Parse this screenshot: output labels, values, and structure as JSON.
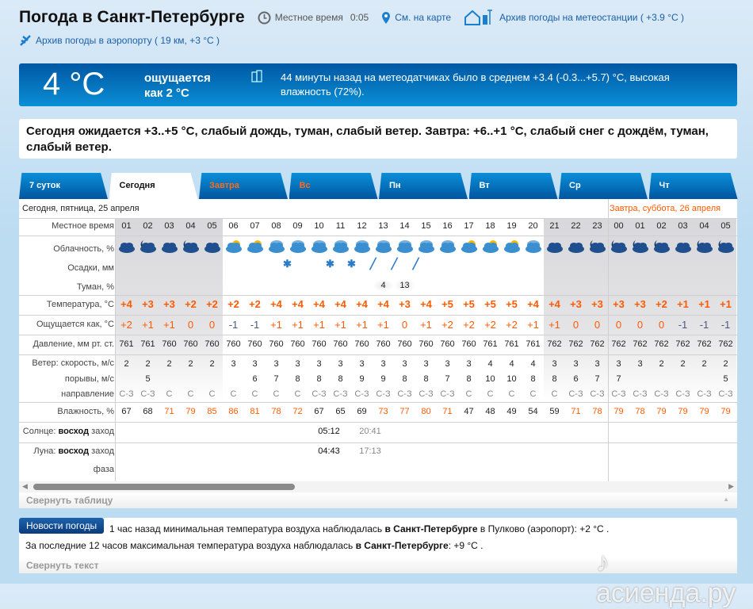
{
  "header": {
    "title": "Погода в Санкт-Петербурге",
    "local_time_label": "Местное время",
    "local_time": "0:05",
    "map_link": "См. на карте",
    "station_archive": "Архив погоды на метеостанции ( +3.9 °C )",
    "airport_archive": "Архив погоды в аэропорту ( 19 км, +3 °C )"
  },
  "current": {
    "temp": "4 °C",
    "feels_line1": "ощущается",
    "feels_line2": "как 2 °C",
    "observation": "44 минуты назад на метеодатчиках было в среднем +3.4 (-0.3...+5.7) °C, высокая влажность (72%)."
  },
  "forecast_text": "Сегодня ожидается +3..+5 °C, слабый дождь, туман, слабый ветер. Завтра: +6..+1 °C, слабый снег с дождём, туман, слабый ветер.",
  "tabs": [
    {
      "label": "7 суток"
    },
    {
      "label": "Сегодня",
      "active": true
    },
    {
      "label": "Завтра",
      "weekend": true
    },
    {
      "label": "Вс",
      "weekend": true
    },
    {
      "label": "Пн"
    },
    {
      "label": "Вт"
    },
    {
      "label": "Ср"
    },
    {
      "label": "Чт"
    }
  ],
  "help": "?",
  "date_today": "Сегодня, пятница, 25 апреля",
  "date_tomorrow": "Завтра, суббота, 26 апреля",
  "labels": {
    "time": "Местное время",
    "cloud": "Облачность, %",
    "precip": "Осадки, мм",
    "fog": "Туман, %",
    "temp": "Температура, °C",
    "feels": "Ощущается как, °C",
    "pressure": "Давление, мм рт. ст.",
    "wind": "Ветер: скорость, м/с",
    "gust": "порывы, м/с",
    "dir": "направление",
    "humidity": "Влажность, %",
    "sun": "Солнце:",
    "moon": "Луна:",
    "rise": "восход",
    "set": "заход",
    "phase": "фаза"
  },
  "hours": [
    "01",
    "02",
    "03",
    "04",
    "05",
    "06",
    "07",
    "08",
    "09",
    "10",
    "11",
    "12",
    "13",
    "14",
    "15",
    "16",
    "17",
    "18",
    "19",
    "20",
    "21",
    "22",
    "23",
    "00",
    "01",
    "02",
    "03",
    "04",
    "05"
  ],
  "night_hours": [
    0,
    1,
    2,
    3,
    4,
    20,
    21,
    22,
    23,
    24,
    25,
    26,
    27,
    28
  ],
  "clouds": [
    "night-cloudy",
    "night-partly",
    "night-cloudy",
    "night-partly",
    "night-cloudy",
    "day-partly",
    "day-partly",
    "day-overcast",
    "day-overcast",
    "day-overcast",
    "day-overcast",
    "day-overcast",
    "day-overcast",
    "day-overcast",
    "day-overcast",
    "day-overcast",
    "day-partly",
    "day-partly",
    "day-partly",
    "day-overcast",
    "night-cloudy",
    "night-cloudy",
    "night-partly",
    "night-partly",
    "night-partly",
    "night-clear",
    "night-cloudy",
    "night-partly",
    "night-clear"
  ],
  "precip": [
    "",
    "",
    "",
    "",
    "",
    "",
    "",
    "",
    "snow",
    "",
    "snow",
    "snow",
    "rain",
    "rain",
    "rain",
    "",
    "",
    "",
    "",
    "",
    "",
    "",
    "",
    "",
    "",
    "",
    "",
    "",
    ""
  ],
  "fog": [
    "",
    "",
    "",
    "",
    "",
    "",
    "",
    "",
    "",
    "",
    "",
    "",
    "4",
    "13",
    "",
    "",
    "",
    "",
    "",
    "",
    "",
    "",
    "",
    "",
    "",
    "",
    "",
    "",
    ""
  ],
  "temperature": [
    "+4",
    "+3",
    "+3",
    "+2",
    "+2",
    "+2",
    "+2",
    "+4",
    "+4",
    "+4",
    "+4",
    "+4",
    "+4",
    "+3",
    "+4",
    "+5",
    "+5",
    "+5",
    "+5",
    "+4",
    "+4",
    "+3",
    "+3",
    "+3",
    "+3",
    "+2",
    "+1",
    "+1",
    "+1"
  ],
  "feels": [
    "+2",
    "+1",
    "+1",
    "0",
    "0",
    "-1",
    "-1",
    "+1",
    "+1",
    "+1",
    "+1",
    "+1",
    "+1",
    "0",
    "+1",
    "+2",
    "+2",
    "+2",
    "+2",
    "+1",
    "+1",
    "0",
    "0",
    "0",
    "0",
    "0",
    "-1",
    "-1",
    "-1"
  ],
  "pressure": [
    "761",
    "761",
    "760",
    "760",
    "760",
    "760",
    "760",
    "760",
    "760",
    "760",
    "760",
    "760",
    "760",
    "760",
    "760",
    "760",
    "760",
    "761",
    "761",
    "761",
    "762",
    "762",
    "762",
    "762",
    "762",
    "762",
    "762",
    "762",
    "762"
  ],
  "wind": [
    "2",
    "2",
    "2",
    "2",
    "2",
    "3",
    "3",
    "3",
    "3",
    "3",
    "3",
    "3",
    "3",
    "3",
    "3",
    "3",
    "3",
    "4",
    "4",
    "4",
    "3",
    "3",
    "3",
    "3",
    "3",
    "2",
    "2",
    "2",
    "2"
  ],
  "gust": [
    "",
    "5",
    "",
    "",
    "",
    "",
    "6",
    "7",
    "8",
    "8",
    "8",
    "9",
    "9",
    "8",
    "8",
    "7",
    "8",
    "10",
    "10",
    "8",
    "8",
    "6",
    "7",
    "7",
    "",
    "",
    "",
    "",
    "5"
  ],
  "direction": [
    "С-З",
    "С-З",
    "С",
    "С",
    "С",
    "С",
    "С",
    "С",
    "С",
    "С-З",
    "С-З",
    "С-З",
    "С-З",
    "С-З",
    "С-З",
    "С-З",
    "С",
    "С",
    "С",
    "С",
    "С",
    "С-З",
    "С-З",
    "С-З",
    "С-З",
    "С-З",
    "С-З",
    "С-З",
    "С-З"
  ],
  "humidity": [
    "67",
    "68",
    "71",
    "79",
    "85",
    "86",
    "81",
    "78",
    "72",
    "67",
    "65",
    "69",
    "73",
    "77",
    "80",
    "71",
    "47",
    "48",
    "49",
    "54",
    "59",
    "71",
    "78",
    "79",
    "78",
    "79",
    "79",
    "79",
    "79"
  ],
  "sun": {
    "rise": "05:12",
    "set": "20:41"
  },
  "moon": {
    "rise": "04:43",
    "set": "17:13",
    "phase_icon": "crescent-moon-icon"
  },
  "collapse_table": "Свернуть таблицу",
  "news": {
    "badge": "Новости погоды",
    "line1_a": "1 час назад минимальная температура воздуха наблюдалась ",
    "line1_b": "в Санкт-Петербурге",
    "line1_c": " в Пулково (аэропорт): +2 °C .",
    "line2_a": "За последние 12 часов максимальная температура воздуха наблюдалась ",
    "line2_b": "в Санкт-Петербурге",
    "line2_c": ": +9 °C .",
    "collapse": "Свернуть текст"
  },
  "watermark": "асиенда.ру",
  "colors": {
    "accent": "#0a6fc0",
    "warm": "#ff5a00",
    "cold": "#4a5a80"
  }
}
